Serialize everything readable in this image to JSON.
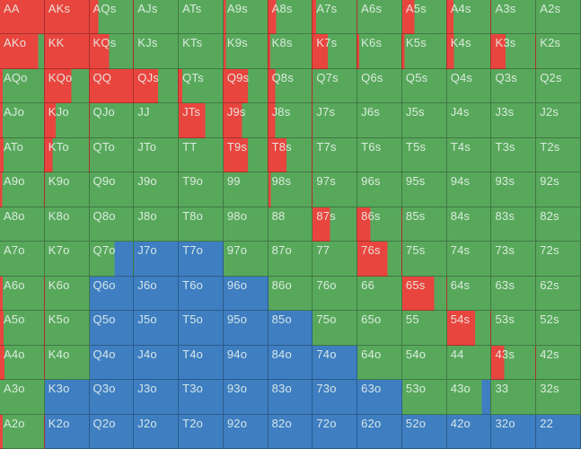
{
  "colors": {
    "red": "#e8453e",
    "green": "#58a85c",
    "blue": "#3e7ec1",
    "label_text": "rgba(236,245,238,0.88)",
    "grid_line": "rgba(0,0,0,0.28)"
  },
  "grid": {
    "rows": 13,
    "cols": 13,
    "cell_format": [
      "hand",
      "red_pct",
      "green_pct",
      "blue_pct"
    ],
    "cells": [
      [
        [
          "AA",
          100,
          0,
          0
        ],
        [
          "AKs",
          100,
          0,
          0
        ],
        [
          "AQs",
          20,
          80,
          0
        ],
        [
          "AJs",
          0,
          100,
          0
        ],
        [
          "ATs",
          0,
          100,
          0
        ],
        [
          "A9s",
          5,
          95,
          0
        ],
        [
          "A8s",
          18,
          82,
          0
        ],
        [
          "A7s",
          8,
          92,
          0
        ],
        [
          "A6s",
          0,
          100,
          0
        ],
        [
          "A5s",
          28,
          72,
          0
        ],
        [
          "A4s",
          15,
          85,
          0
        ],
        [
          "A3s",
          0,
          100,
          0
        ],
        [
          "A2s",
          0,
          100,
          0
        ]
      ],
      [
        [
          "AKo",
          87,
          13,
          0
        ],
        [
          "KK",
          100,
          0,
          0
        ],
        [
          "KQs",
          45,
          55,
          0
        ],
        [
          "KJs",
          0,
          100,
          0
        ],
        [
          "KTs",
          0,
          100,
          0
        ],
        [
          "K9s",
          5,
          95,
          0
        ],
        [
          "K8s",
          4,
          96,
          0
        ],
        [
          "K7s",
          35,
          65,
          0
        ],
        [
          "K6s",
          4,
          96,
          0
        ],
        [
          "K5s",
          5,
          95,
          0
        ],
        [
          "K4s",
          16,
          84,
          0
        ],
        [
          "K3s",
          33,
          67,
          0
        ],
        [
          "K2s",
          0,
          100,
          0
        ]
      ],
      [
        [
          "AQo",
          6,
          94,
          0
        ],
        [
          "KQo",
          60,
          40,
          0
        ],
        [
          "QQ",
          100,
          0,
          0
        ],
        [
          "QJs",
          55,
          45,
          0
        ],
        [
          "QTs",
          8,
          92,
          0
        ],
        [
          "Q9s",
          55,
          45,
          0
        ],
        [
          "Q8s",
          16,
          84,
          0
        ],
        [
          "Q7s",
          0,
          100,
          0
        ],
        [
          "Q6s",
          0,
          100,
          0
        ],
        [
          "Q5s",
          0,
          100,
          0
        ],
        [
          "Q4s",
          0,
          100,
          0
        ],
        [
          "Q3s",
          0,
          100,
          0
        ],
        [
          "Q2s",
          0,
          100,
          0
        ]
      ],
      [
        [
          "AJo",
          6,
          94,
          0
        ],
        [
          "KJo",
          25,
          75,
          0
        ],
        [
          "QJo",
          0,
          100,
          0
        ],
        [
          "JJ",
          0,
          100,
          0
        ],
        [
          "JTs",
          60,
          40,
          0
        ],
        [
          "J9s",
          42,
          58,
          0
        ],
        [
          "J8s",
          16,
          84,
          0
        ],
        [
          "J7s",
          0,
          100,
          0
        ],
        [
          "J6s",
          0,
          100,
          0
        ],
        [
          "J5s",
          0,
          100,
          0
        ],
        [
          "J4s",
          0,
          100,
          0
        ],
        [
          "J3s",
          0,
          100,
          0
        ],
        [
          "J2s",
          0,
          100,
          0
        ]
      ],
      [
        [
          "ATo",
          8,
          92,
          0
        ],
        [
          "KTo",
          17,
          83,
          0
        ],
        [
          "QTo",
          0,
          100,
          0
        ],
        [
          "JTo",
          0,
          100,
          0
        ],
        [
          "TT",
          0,
          100,
          0
        ],
        [
          "T9s",
          55,
          45,
          0
        ],
        [
          "T8s",
          42,
          58,
          0
        ],
        [
          "T7s",
          0,
          100,
          0
        ],
        [
          "T6s",
          0,
          100,
          0
        ],
        [
          "T5s",
          0,
          100,
          0
        ],
        [
          "T4s",
          0,
          100,
          0
        ],
        [
          "T3s",
          0,
          100,
          0
        ],
        [
          "T2s",
          0,
          100,
          0
        ]
      ],
      [
        [
          "A9o",
          5,
          95,
          0
        ],
        [
          "K9o",
          0,
          100,
          0
        ],
        [
          "Q9o",
          0,
          100,
          0
        ],
        [
          "J9o",
          0,
          100,
          0
        ],
        [
          "T9o",
          0,
          100,
          0
        ],
        [
          "99",
          0,
          100,
          0
        ],
        [
          "98s",
          5,
          95,
          0
        ],
        [
          "97s",
          0,
          100,
          0
        ],
        [
          "96s",
          0,
          100,
          0
        ],
        [
          "95s",
          0,
          100,
          0
        ],
        [
          "94s",
          0,
          100,
          0
        ],
        [
          "93s",
          0,
          100,
          0
        ],
        [
          "92s",
          0,
          100,
          0
        ]
      ],
      [
        [
          "A8o",
          0,
          100,
          0
        ],
        [
          "K8o",
          0,
          100,
          0
        ],
        [
          "Q8o",
          0,
          100,
          0
        ],
        [
          "J8o",
          0,
          100,
          0
        ],
        [
          "T8o",
          0,
          100,
          0
        ],
        [
          "98o",
          0,
          100,
          0
        ],
        [
          "88",
          0,
          100,
          0
        ],
        [
          "87s",
          40,
          60,
          0
        ],
        [
          "86s",
          30,
          70,
          0
        ],
        [
          "85s",
          0,
          100,
          0
        ],
        [
          "84s",
          0,
          100,
          0
        ],
        [
          "83s",
          0,
          100,
          0
        ],
        [
          "82s",
          0,
          100,
          0
        ]
      ],
      [
        [
          "A7o",
          0,
          100,
          0
        ],
        [
          "K7o",
          0,
          100,
          0
        ],
        [
          "Q7o",
          0,
          57,
          43
        ],
        [
          "J7o",
          0,
          0,
          100
        ],
        [
          "T7o",
          0,
          0,
          100
        ],
        [
          "97o",
          0,
          100,
          0
        ],
        [
          "87o",
          0,
          100,
          0
        ],
        [
          "77",
          0,
          100,
          0
        ],
        [
          "76s",
          68,
          32,
          0
        ],
        [
          "75s",
          0,
          100,
          0
        ],
        [
          "74s",
          0,
          100,
          0
        ],
        [
          "73s",
          0,
          100,
          0
        ],
        [
          "72s",
          0,
          100,
          0
        ]
      ],
      [
        [
          "A6o",
          6,
          94,
          0
        ],
        [
          "K6o",
          0,
          100,
          0
        ],
        [
          "Q6o",
          0,
          0,
          100
        ],
        [
          "J6o",
          0,
          0,
          100
        ],
        [
          "T6o",
          0,
          0,
          100
        ],
        [
          "96o",
          0,
          0,
          100
        ],
        [
          "86o",
          0,
          100,
          0
        ],
        [
          "76o",
          0,
          100,
          0
        ],
        [
          "66",
          0,
          100,
          0
        ],
        [
          "65s",
          72,
          28,
          0
        ],
        [
          "64s",
          0,
          100,
          0
        ],
        [
          "63s",
          0,
          100,
          0
        ],
        [
          "62s",
          0,
          100,
          0
        ]
      ],
      [
        [
          "A5o",
          8,
          92,
          0
        ],
        [
          "K5o",
          0,
          100,
          0
        ],
        [
          "Q5o",
          0,
          0,
          100
        ],
        [
          "J5o",
          0,
          0,
          100
        ],
        [
          "T5o",
          0,
          0,
          100
        ],
        [
          "95o",
          0,
          0,
          100
        ],
        [
          "85o",
          0,
          0,
          100
        ],
        [
          "75o",
          0,
          100,
          0
        ],
        [
          "65o",
          0,
          100,
          0
        ],
        [
          "55",
          0,
          100,
          0
        ],
        [
          "54s",
          65,
          35,
          0
        ],
        [
          "53s",
          0,
          100,
          0
        ],
        [
          "52s",
          0,
          100,
          0
        ]
      ],
      [
        [
          "A4o",
          10,
          90,
          0
        ],
        [
          "K4o",
          0,
          100,
          0
        ],
        [
          "Q4o",
          0,
          0,
          100
        ],
        [
          "J4o",
          0,
          0,
          100
        ],
        [
          "T4o",
          0,
          0,
          100
        ],
        [
          "94o",
          0,
          0,
          100
        ],
        [
          "84o",
          0,
          0,
          100
        ],
        [
          "74o",
          0,
          0,
          100
        ],
        [
          "64o",
          0,
          100,
          0
        ],
        [
          "54o",
          0,
          100,
          0
        ],
        [
          "44",
          0,
          100,
          0
        ],
        [
          "43s",
          30,
          70,
          0
        ],
        [
          "42s",
          0,
          100,
          0
        ]
      ],
      [
        [
          "A3o",
          0,
          100,
          0
        ],
        [
          "K3o",
          0,
          0,
          100
        ],
        [
          "Q3o",
          0,
          0,
          100
        ],
        [
          "J3o",
          0,
          0,
          100
        ],
        [
          "T3o",
          0,
          0,
          100
        ],
        [
          "93o",
          0,
          0,
          100
        ],
        [
          "83o",
          0,
          0,
          100
        ],
        [
          "73o",
          0,
          0,
          100
        ],
        [
          "63o",
          0,
          0,
          100
        ],
        [
          "53o",
          0,
          100,
          0
        ],
        [
          "43o",
          0,
          80,
          20
        ],
        [
          "33",
          0,
          100,
          0
        ],
        [
          "32s",
          0,
          100,
          0
        ]
      ],
      [
        [
          "A2o",
          6,
          94,
          0
        ],
        [
          "K2o",
          0,
          0,
          100
        ],
        [
          "Q2o",
          0,
          0,
          100
        ],
        [
          "J2o",
          0,
          0,
          100
        ],
        [
          "T2o",
          0,
          0,
          100
        ],
        [
          "92o",
          0,
          0,
          100
        ],
        [
          "82o",
          0,
          0,
          100
        ],
        [
          "72o",
          0,
          0,
          100
        ],
        [
          "62o",
          0,
          0,
          100
        ],
        [
          "52o",
          0,
          0,
          100
        ],
        [
          "42o",
          0,
          0,
          100
        ],
        [
          "32o",
          0,
          0,
          100
        ],
        [
          "22",
          0,
          0,
          100
        ]
      ]
    ]
  }
}
